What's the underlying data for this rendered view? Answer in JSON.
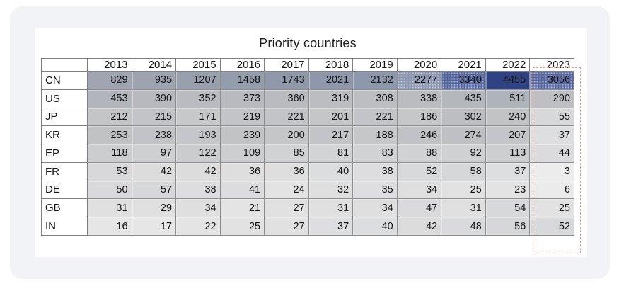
{
  "title": "Priority countries",
  "chart_data": {
    "type": "heatmap",
    "title": "Priority countries",
    "corner_label": "",
    "x_categories": [
      "2013",
      "2014",
      "2015",
      "2016",
      "2017",
      "2018",
      "2019",
      "2020",
      "2021",
      "2022",
      "2023"
    ],
    "y_categories": [
      "CN",
      "US",
      "JP",
      "KR",
      "EP",
      "FR",
      "DE",
      "GB",
      "IN"
    ],
    "series": [
      {
        "name": "CN",
        "values": [
          829,
          935,
          1207,
          1458,
          1743,
          2021,
          2132,
          2277,
          3340,
          4455,
          3056
        ]
      },
      {
        "name": "US",
        "values": [
          453,
          390,
          352,
          373,
          360,
          319,
          308,
          338,
          435,
          511,
          290
        ]
      },
      {
        "name": "JP",
        "values": [
          212,
          215,
          171,
          219,
          221,
          201,
          221,
          186,
          302,
          240,
          55
        ]
      },
      {
        "name": "KR",
        "values": [
          253,
          238,
          193,
          239,
          200,
          217,
          188,
          246,
          274,
          207,
          37
        ]
      },
      {
        "name": "EP",
        "values": [
          118,
          97,
          122,
          109,
          85,
          81,
          83,
          88,
          92,
          113,
          44
        ]
      },
      {
        "name": "FR",
        "values": [
          53,
          42,
          42,
          36,
          36,
          40,
          38,
          52,
          58,
          37,
          3
        ]
      },
      {
        "name": "DE",
        "values": [
          50,
          57,
          38,
          41,
          24,
          32,
          35,
          34,
          25,
          23,
          6
        ]
      },
      {
        "name": "GB",
        "values": [
          31,
          29,
          34,
          21,
          27,
          31,
          34,
          47,
          31,
          54,
          25
        ]
      },
      {
        "name": "IN",
        "values": [
          16,
          17,
          22,
          25,
          27,
          37,
          40,
          42,
          48,
          56,
          52
        ]
      }
    ],
    "value_range": [
      3,
      4455
    ],
    "legend": "none",
    "highlighted_column": "2023"
  },
  "heatmap": {
    "low_color": "#ececec",
    "high_color": "#2e4284",
    "stops": [
      [
        0,
        "#efefef"
      ],
      [
        3,
        "#ececec"
      ],
      [
        30,
        "#e0e0e1"
      ],
      [
        60,
        "#d5d6d8"
      ],
      [
        130,
        "#c9cbcd"
      ],
      [
        260,
        "#bfc1c4"
      ],
      [
        460,
        "#b2b5bb"
      ],
      [
        840,
        "#9fa5b1"
      ],
      [
        1210,
        "#98a0ae"
      ],
      [
        1750,
        "#9099aa"
      ],
      [
        2140,
        "#8e98ac"
      ],
      [
        2280,
        "#8b95ae"
      ],
      [
        3060,
        "#57669e"
      ],
      [
        3350,
        "#53639c"
      ],
      [
        4455,
        "#2e4284"
      ]
    ]
  },
  "highlight": {
    "column": "2023",
    "color": "#e8958c"
  }
}
